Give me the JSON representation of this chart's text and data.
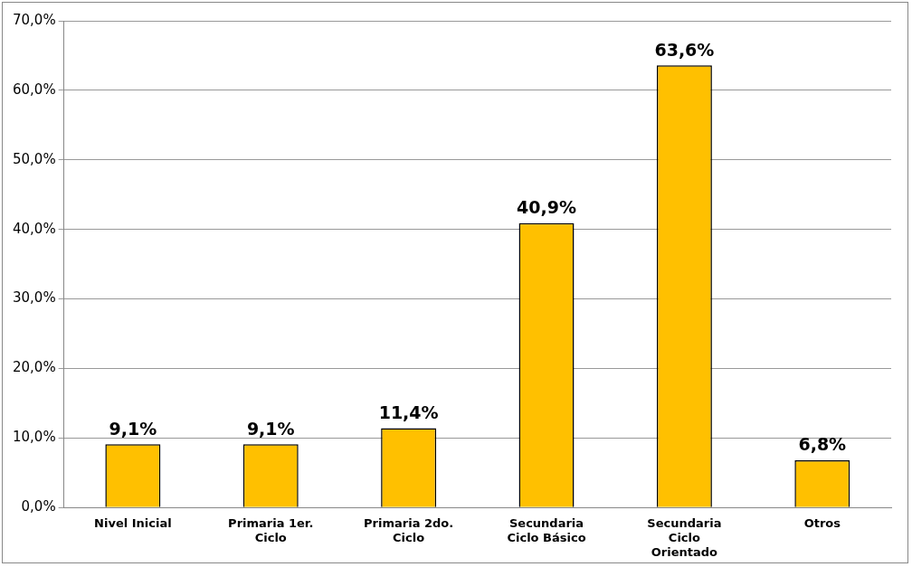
{
  "chart_data": {
    "type": "bar",
    "categories": [
      "Nivel Inicial",
      "Primaria 1er. Ciclo",
      "Primaria 2do. Ciclo",
      "Secundaria Ciclo Básico",
      "Secundaria Ciclo Orientado",
      "Otros"
    ],
    "values": [
      9.1,
      9.1,
      11.4,
      40.9,
      63.6,
      6.8
    ],
    "value_labels": [
      "9,1%",
      "9,1%",
      "11,4%",
      "40,9%",
      "63,6%",
      "6,8%"
    ],
    "color": "#ffc000",
    "ylim": [
      0,
      70
    ],
    "yticks": [
      {
        "value": 0,
        "label": "0,0%"
      },
      {
        "value": 10,
        "label": "10,0%"
      },
      {
        "value": 20,
        "label": "20,0%"
      },
      {
        "value": 30,
        "label": "30,0%"
      },
      {
        "value": 40,
        "label": "40,0%"
      },
      {
        "value": 50,
        "label": "50,0%"
      },
      {
        "value": 60,
        "label": "60,0%"
      },
      {
        "value": 70,
        "label": "70,0%"
      }
    ],
    "grid": "y",
    "legend": false
  }
}
